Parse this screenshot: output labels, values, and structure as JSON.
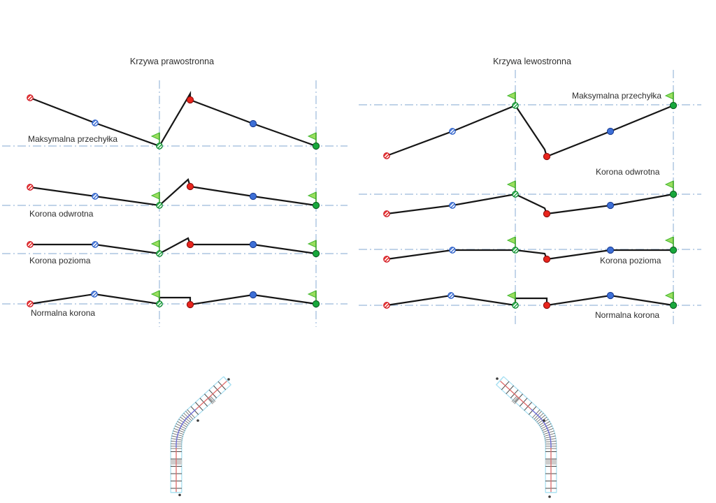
{
  "diagrams": {
    "left": {
      "title": "Krzywa prawostronna",
      "rows": [
        {
          "label": "Maksymalna przechyłka"
        },
        {
          "label": "Korona odwrotna"
        },
        {
          "label": "Korona pozioma"
        },
        {
          "label": "Normalna korona"
        }
      ]
    },
    "right": {
      "title": "Krzywa lewostronna",
      "rows": [
        {
          "label": "Maksymalna przechyłka"
        },
        {
          "label": "Korona odwrotna"
        },
        {
          "label": "Korona pozioma"
        },
        {
          "label": "Normalna korona"
        }
      ]
    }
  },
  "marker_glyphs": {
    "hatched_red": "red-hatched-circle-marker",
    "hatched_blue": "blue-hatched-circle-marker",
    "hatched_green": "green-hatched-circle-marker",
    "filled_red": "red-circle-marker",
    "filled_blue": "blue-circle-marker",
    "filled_green": "green-circle-marker",
    "flag": "green-flag-marker"
  },
  "colors": {
    "guide_line": "#9bb9da",
    "profile_line": "#161616",
    "marker_red": "#e8251d",
    "marker_blue": "#3d6fd6",
    "marker_green": "#18a83c",
    "flag_fill": "#9ade5e",
    "flag_stroke": "#46b832",
    "road_edge": "#a9e0f2",
    "road_centerline_straight": "#dd6b6b",
    "road_centerline_curve": "#6f6fd8",
    "cross_tick": "#4a4a4a"
  }
}
